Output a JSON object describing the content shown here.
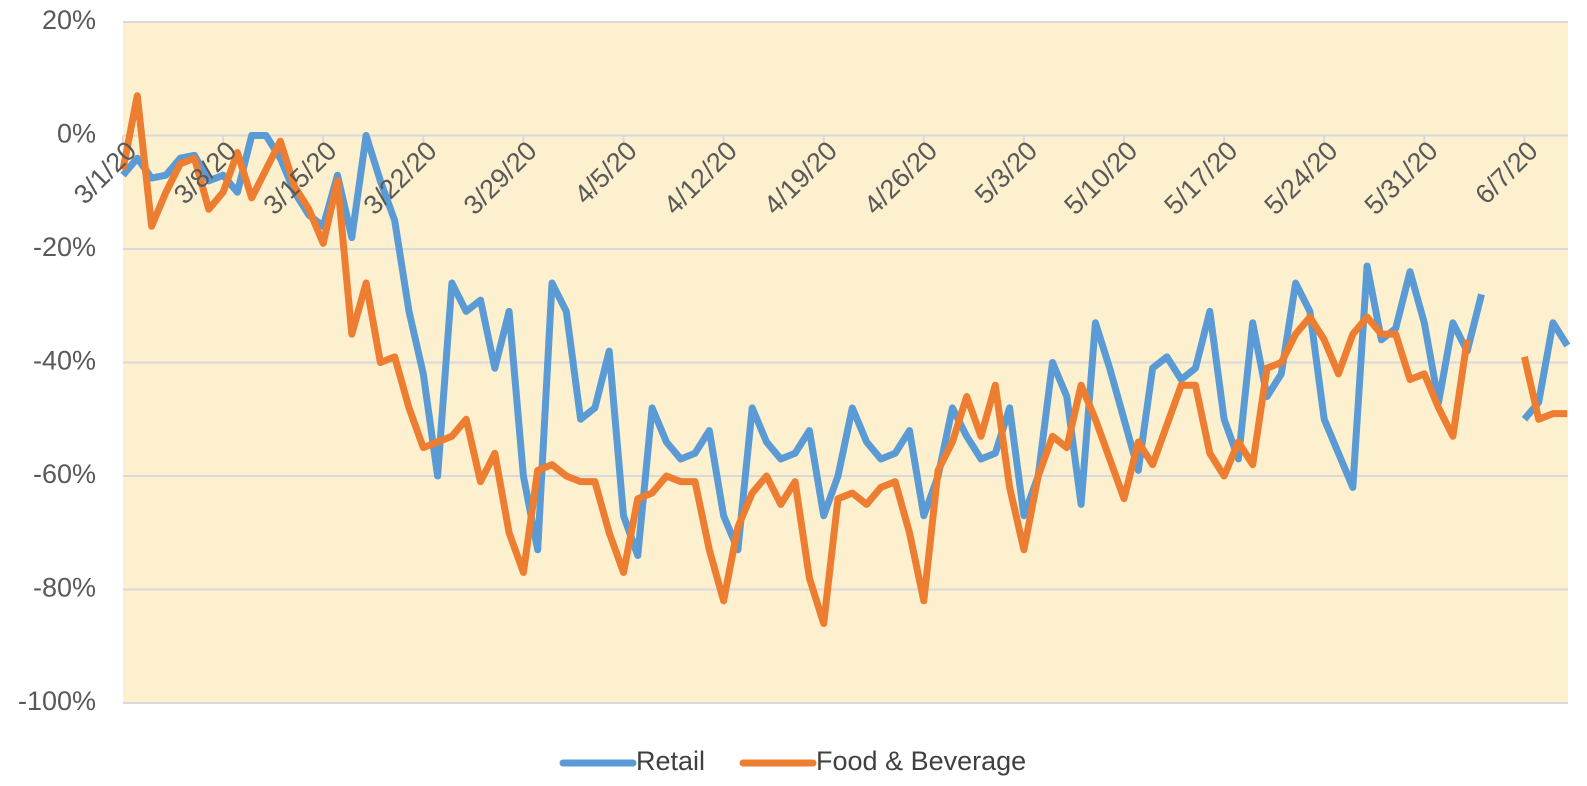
{
  "chart_data": {
    "type": "line",
    "categories": [
      "3/1/20",
      null,
      null,
      null,
      null,
      null,
      null,
      "3/8/20",
      null,
      null,
      null,
      null,
      null,
      null,
      "3/15/20",
      null,
      null,
      null,
      null,
      null,
      null,
      "3/22/20",
      null,
      null,
      null,
      null,
      null,
      null,
      "3/29/20",
      null,
      null,
      null,
      null,
      null,
      null,
      "4/5/20",
      null,
      null,
      null,
      null,
      null,
      null,
      "4/12/20",
      null,
      null,
      null,
      null,
      null,
      null,
      "4/19/20",
      null,
      null,
      null,
      null,
      null,
      null,
      "4/26/20",
      null,
      null,
      null,
      null,
      null,
      null,
      "5/3/20",
      null,
      null,
      null,
      null,
      null,
      null,
      "5/10/20",
      null,
      null,
      null,
      null,
      null,
      null,
      "5/17/20",
      null,
      null,
      null,
      null,
      null,
      null,
      "5/24/20",
      null,
      null,
      null,
      null,
      null,
      null,
      "5/31/20",
      null,
      null,
      null,
      null,
      null,
      null,
      "6/7/20",
      null,
      null,
      null
    ],
    "series": [
      {
        "name": "Retail",
        "color": "#5b9bd5",
        "values": [
          -7,
          -4,
          -7.5,
          -7,
          -4,
          -3.5,
          -8,
          -7,
          -10,
          0,
          0,
          -4,
          -10,
          -14,
          -16,
          -7,
          -18,
          0,
          -8,
          -15,
          -31,
          -42,
          -60,
          -26,
          -31,
          -29,
          -41,
          -31,
          -60,
          -73,
          -26,
          -31,
          -50,
          -48,
          -38,
          -67,
          -74,
          -48,
          -54,
          -57,
          -56,
          -52,
          -67,
          -73,
          -48,
          -54,
          -57,
          -56,
          -52,
          -67,
          -60,
          -48,
          -54,
          -57,
          -56,
          -52,
          -67,
          -60,
          -48,
          -53,
          -57,
          -56,
          -48,
          -67,
          -60,
          -40,
          -46,
          -65,
          -33,
          -41,
          -50,
          -59,
          -41,
          -39,
          -43,
          -41,
          -31,
          -50,
          -57,
          -33,
          -46,
          -42,
          -26,
          -31,
          -50,
          -56,
          -62,
          -23,
          -36,
          -34,
          -24,
          -33,
          -47,
          -33,
          -38,
          -28,
          null,
          null,
          -50,
          -47,
          -33,
          -37
        ]
      },
      {
        "name": "Food & Beverage",
        "color": "#ed7d31",
        "values": [
          -6,
          7,
          -16,
          -10,
          -5,
          -4,
          -13,
          -10,
          -3,
          -11,
          -6,
          -1,
          -9,
          -13,
          -19,
          -8,
          -35,
          -26,
          -40,
          -39,
          -48,
          -55,
          -54,
          -53,
          -50,
          -61,
          -56,
          -70,
          -77,
          -59,
          -58,
          -60,
          -61,
          -61,
          -70,
          -77,
          -64,
          -63,
          -60,
          -61,
          -61,
          -73,
          -82,
          -69,
          -63,
          -60,
          -65,
          -61,
          -78,
          -86,
          -64,
          -63,
          -65,
          -62,
          -61,
          -70,
          -82,
          -59,
          -54,
          -46,
          -53,
          -44,
          -62,
          -73,
          -60,
          -53,
          -55,
          -44,
          -50,
          -57,
          -64,
          -54,
          -58,
          -51,
          -44,
          -44,
          -56,
          -60,
          -54,
          -58,
          -41,
          -40,
          -35,
          -32,
          -36,
          -42,
          -35,
          -32,
          -35,
          -35,
          -43,
          -42,
          -48,
          -53,
          -36,
          null,
          null,
          null,
          -39,
          -50,
          -49,
          -49
        ]
      }
    ],
    "ylim": [
      -100,
      20
    ],
    "yticks": [
      {
        "value": 20,
        "label": "20%"
      },
      {
        "value": 0,
        "label": "0%"
      },
      {
        "value": -20,
        "label": "-20%"
      },
      {
        "value": -40,
        "label": "-40%"
      },
      {
        "value": -60,
        "label": "-60%"
      },
      {
        "value": -80,
        "label": "-80%"
      },
      {
        "value": -100,
        "label": "-100%"
      }
    ],
    "grid": true,
    "legend": "bottom"
  }
}
